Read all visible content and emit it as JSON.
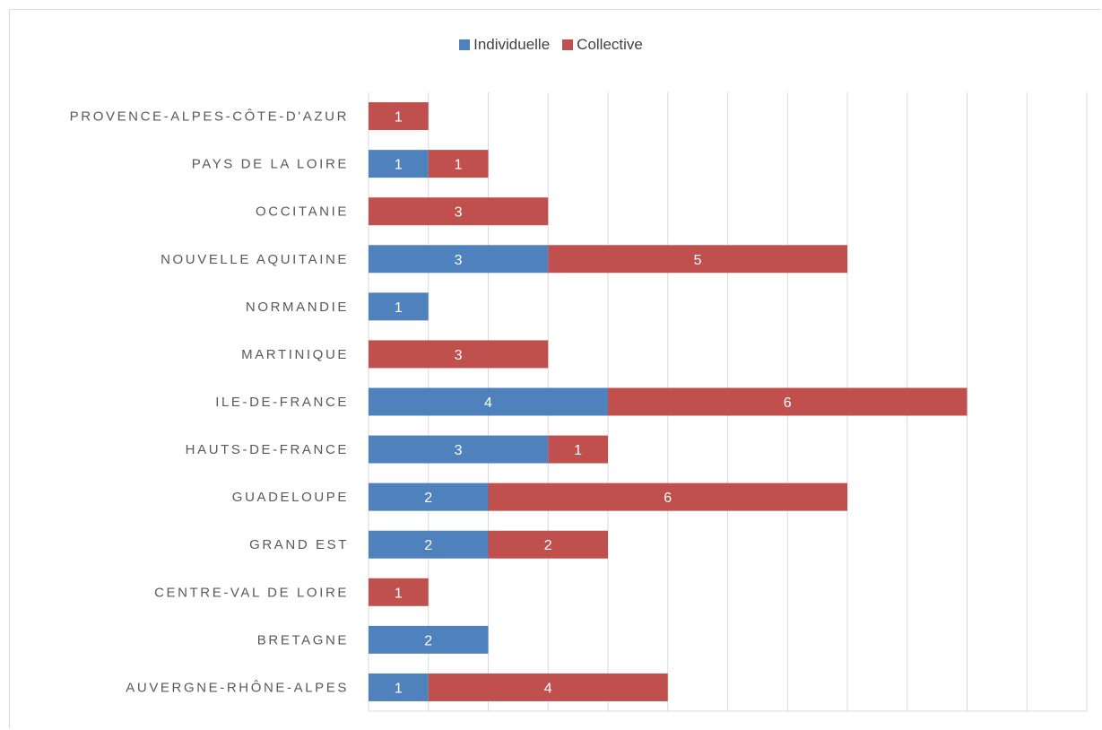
{
  "chart_data": {
    "type": "bar",
    "orientation": "horizontal",
    "stacked": true,
    "categories": [
      "PROVENCE-ALPES-CÔTE-D'AZUR",
      "PAYS DE LA LOIRE",
      "OCCITANIE",
      "NOUVELLE AQUITAINE",
      "NORMANDIE",
      "MARTINIQUE",
      "ILE-DE-FRANCE",
      "HAUTS-DE-FRANCE",
      "GUADELOUPE",
      "GRAND EST",
      "CENTRE-VAL DE LOIRE",
      "BRETAGNE",
      "AUVERGNE-RHÔNE-ALPES"
    ],
    "series": [
      {
        "name": "Individuelle",
        "color": "#4f81bd",
        "values": [
          0,
          1,
          0,
          3,
          1,
          0,
          4,
          3,
          2,
          2,
          0,
          2,
          1
        ]
      },
      {
        "name": "Collective",
        "color": "#c0504d",
        "values": [
          1,
          1,
          3,
          5,
          0,
          3,
          6,
          1,
          6,
          2,
          1,
          0,
          4
        ]
      }
    ],
    "xlim": [
      0,
      12
    ],
    "grid": true,
    "legend_position": "top"
  },
  "legend": {
    "items": [
      {
        "label": "Individuelle",
        "color": "#4f81bd"
      },
      {
        "label": "Collective",
        "color": "#c0504d"
      }
    ]
  }
}
